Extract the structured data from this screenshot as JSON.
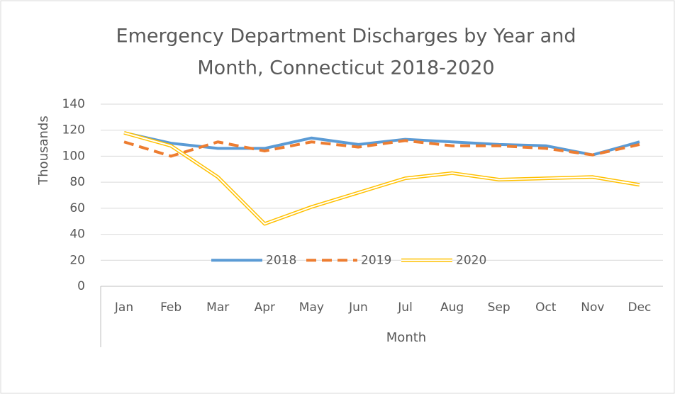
{
  "chart_data": {
    "type": "line",
    "title": "Emergency Department Discharges by Year and Month, Connecticut 2018-2020",
    "title_lines": [
      "Emergency Department Discharges by Year and",
      "Month, Connecticut 2018-2020"
    ],
    "x_label": "Month",
    "y_label": "Thousands",
    "categories": [
      "Jan",
      "Feb",
      "Mar",
      "Apr",
      "May",
      "Jun",
      "Jul",
      "Aug",
      "Sep",
      "Oct",
      "Nov",
      "Dec"
    ],
    "series": [
      {
        "name": "2018",
        "color": "#5b9bd5",
        "style": "solid",
        "values": [
          118,
          110,
          106,
          106,
          114,
          109,
          113,
          111,
          109,
          108,
          101,
          111
        ]
      },
      {
        "name": "2019",
        "color": "#ed7d31",
        "style": "dashed",
        "values": [
          111,
          100,
          111,
          104,
          111,
          107,
          112,
          108,
          108,
          106,
          101,
          109
        ]
      },
      {
        "name": "2020",
        "color": "#ffc000",
        "style": "double",
        "values": [
          118,
          108,
          84,
          48,
          61,
          72,
          83,
          87,
          82,
          83,
          84,
          78
        ]
      }
    ],
    "ylim": [
      0,
      140
    ],
    "yticks": [
      0,
      20,
      40,
      60,
      80,
      100,
      120,
      140
    ],
    "grid": true,
    "legend": "inside-bottom"
  }
}
